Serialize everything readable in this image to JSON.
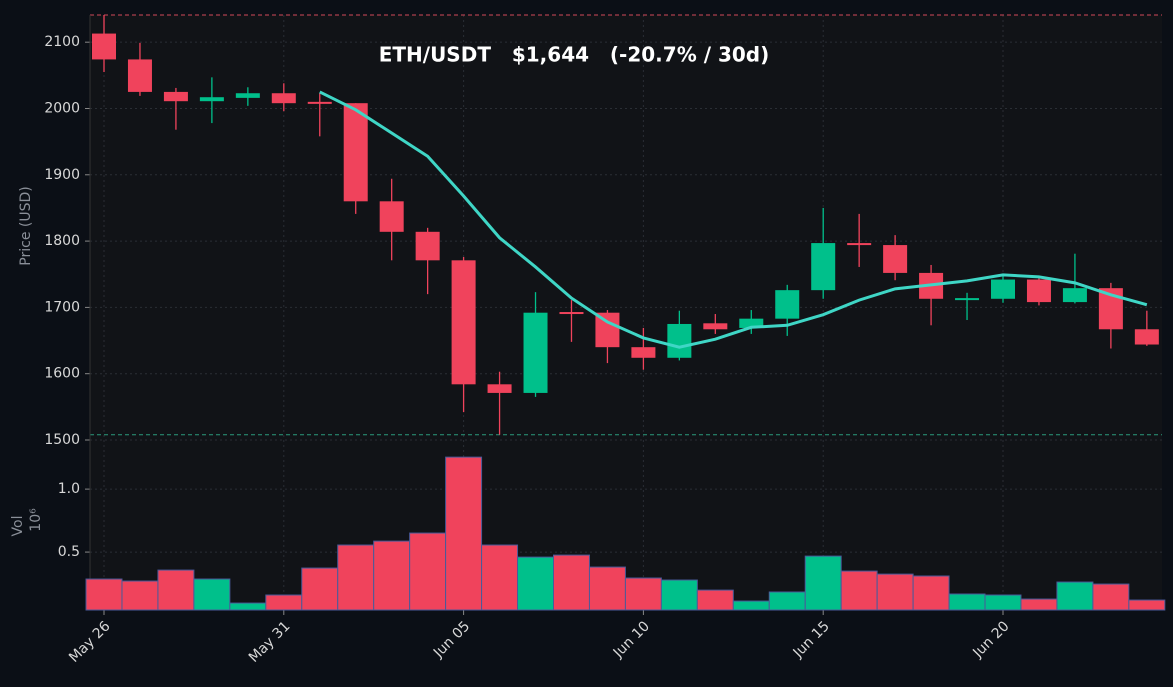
{
  "chart_data": {
    "type": "candlestick",
    "title": "ETH/USDT   $1,644   (-20.7% / 30d)",
    "ylabel": "Price (USD)",
    "categories": [
      "May 26",
      null,
      null,
      null,
      null,
      "May 31",
      null,
      null,
      null,
      null,
      "Jun 05",
      null,
      null,
      null,
      null,
      "Jun 10",
      null,
      null,
      null,
      null,
      "Jun 15",
      null,
      null,
      null,
      null,
      "Jun 20",
      null,
      null,
      null,
      null
    ],
    "open": [
      2113,
      2074,
      2025,
      2011,
      2016,
      2023,
      2010,
      2008,
      1860,
      1814,
      1771,
      1584,
      1571,
      1693,
      1692,
      1640,
      1624,
      1676,
      1669,
      1683,
      1726,
      1797,
      1794,
      1752,
      1713,
      1713,
      1742,
      1708,
      1729,
      1667
    ],
    "high": [
      2141,
      2099,
      2031,
      2047,
      2032,
      2038,
      2023,
      2008,
      1894,
      1820,
      1776,
      1603,
      1723,
      1711,
      1696,
      1669,
      1695,
      1690,
      1696,
      1734,
      1850,
      1841,
      1809,
      1764,
      1722,
      1749,
      1745,
      1781,
      1737,
      1695
    ],
    "low": [
      2055,
      2019,
      1968,
      1978,
      2004,
      1996,
      1958,
      1841,
      1771,
      1720,
      1542,
      1508,
      1565,
      1648,
      1616,
      1606,
      1620,
      1660,
      1660,
      1657,
      1713,
      1761,
      1741,
      1673,
      1681,
      1707,
      1703,
      1706,
      1638,
      1642
    ],
    "close": [
      2074,
      2025,
      2011,
      2017,
      2023,
      2008,
      2007,
      1860,
      1814,
      1771,
      1584,
      1571,
      1692,
      1690,
      1640,
      1624,
      1675,
      1667,
      1683,
      1726,
      1797,
      1794,
      1752,
      1713,
      1714,
      1742,
      1708,
      1729,
      1667,
      1644
    ],
    "up_color": "#00c08b",
    "down_color": "#f0435c",
    "ma": {
      "color": "#3fd6c6",
      "values": [
        null,
        null,
        null,
        null,
        null,
        null,
        2025,
        1998,
        1963,
        1928,
        1868,
        1805,
        1761,
        1714,
        1678,
        1654,
        1640,
        1652,
        1670,
        1673,
        1689,
        1711,
        1728,
        1734,
        1740,
        1749,
        1746,
        1737,
        1719,
        1704
      ]
    },
    "hlines": [
      {
        "value": 2141,
        "color": "#d24a5a"
      },
      {
        "value": 1508,
        "color": "#2a9a7c"
      }
    ],
    "ylim": [
      1500,
      2141
    ],
    "yticks": [
      1500,
      1600,
      1700,
      1800,
      1900,
      2000,
      2100
    ],
    "grid": true,
    "volume": {
      "ylabel": "Vol",
      "scale_label": "10⁶",
      "values": [
        0.286,
        0.27,
        0.357,
        0.286,
        0.095,
        0.159,
        0.373,
        0.556,
        0.587,
        0.651,
        1.254,
        0.556,
        0.46,
        0.476,
        0.381,
        0.294,
        0.278,
        0.198,
        0.111,
        0.183,
        0.468,
        0.349,
        0.325,
        0.31,
        0.167,
        0.159,
        0.127,
        0.262,
        0.246,
        0.119
      ],
      "ylim": [
        0.04,
        1.39
      ],
      "yticks": [
        0.5,
        {
          "value": 1,
          "label": "1.0"
        }
      ]
    }
  }
}
